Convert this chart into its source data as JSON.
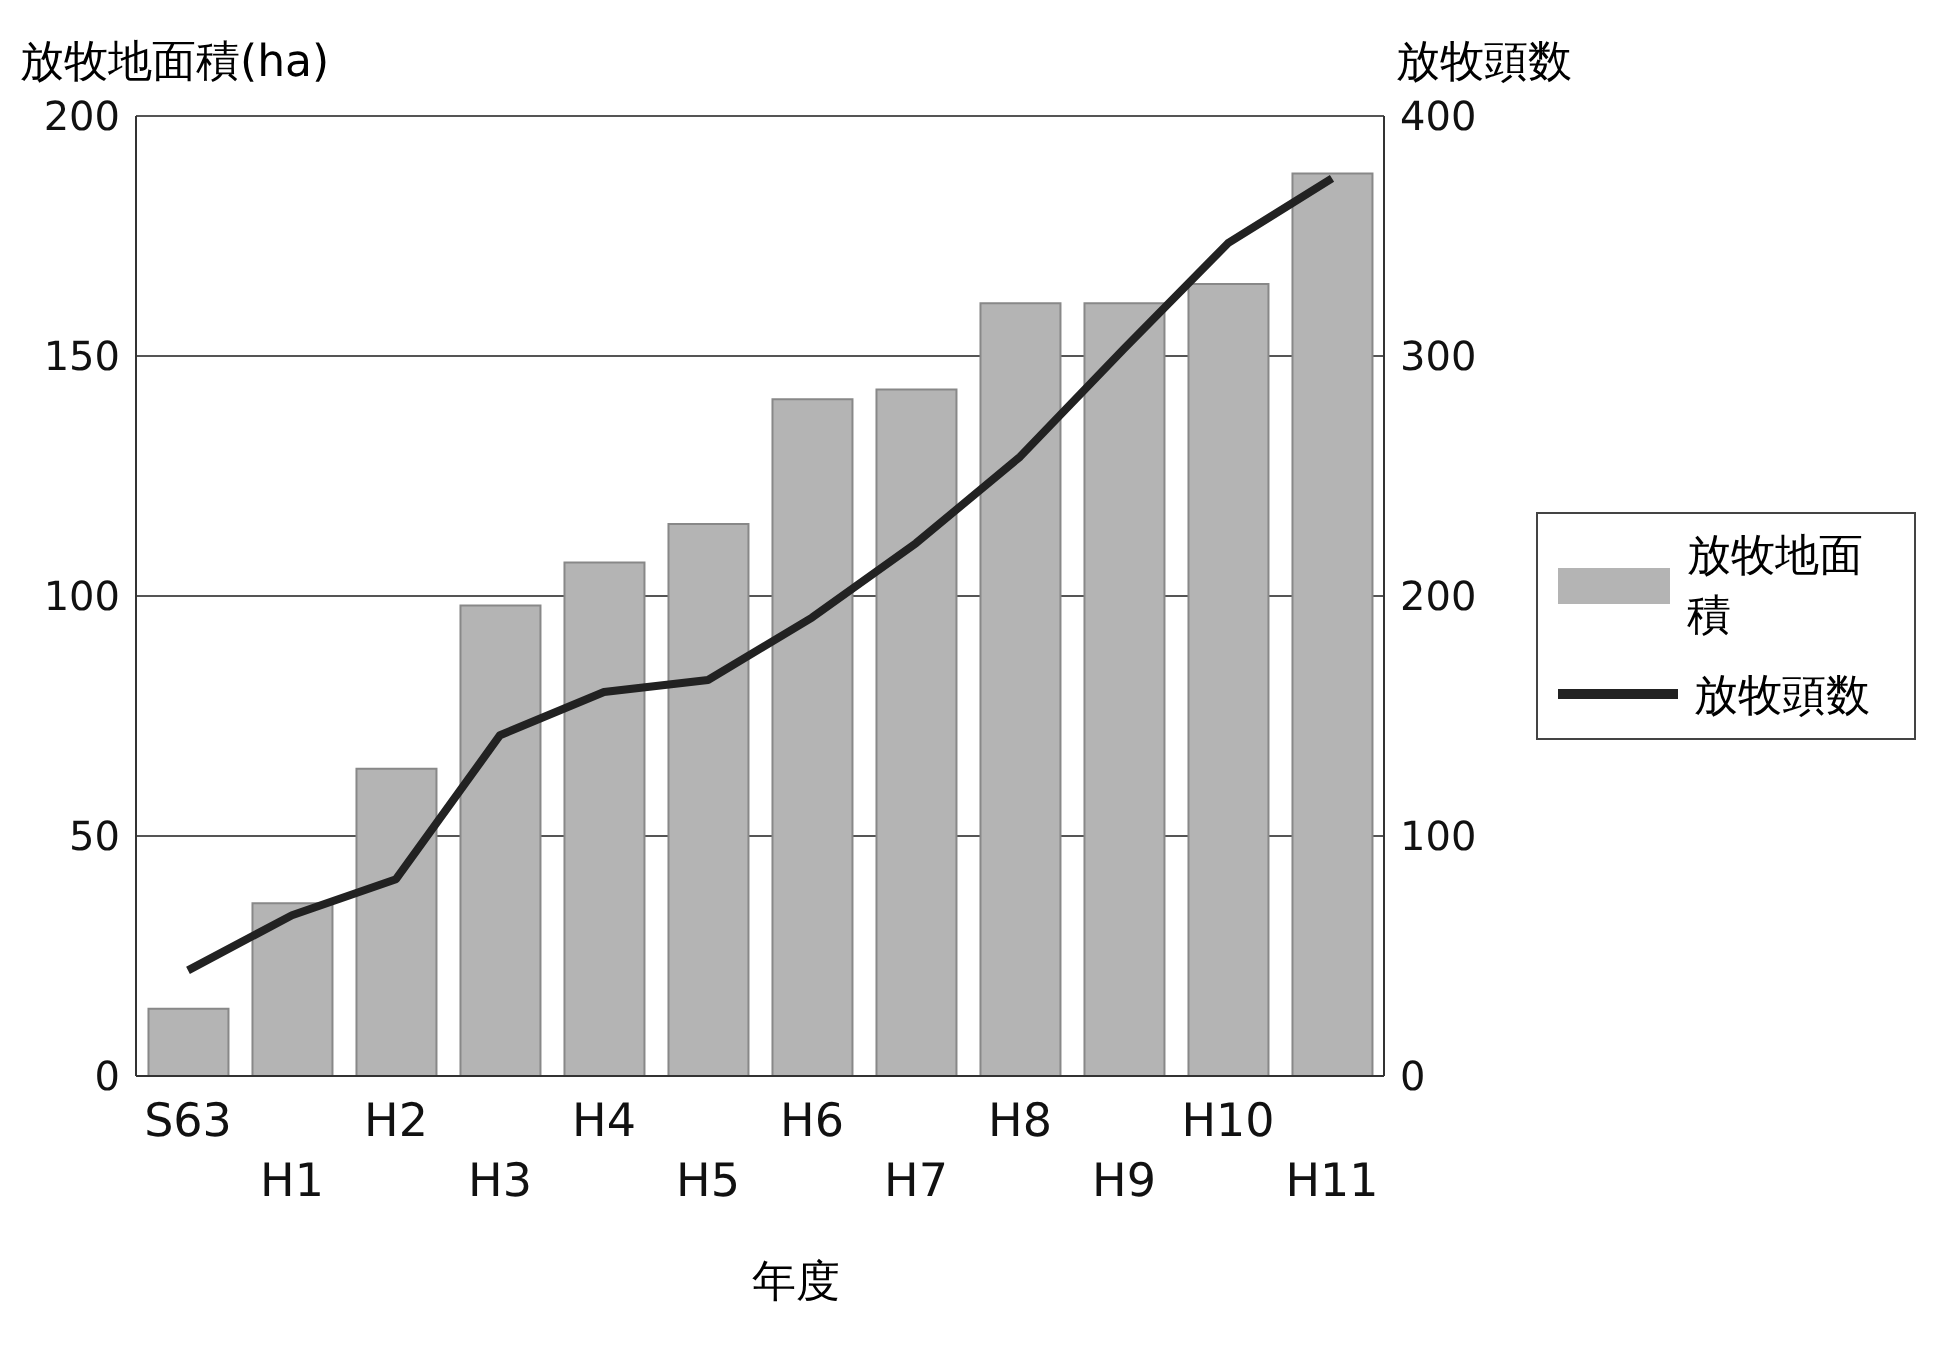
{
  "chart_data": {
    "type": "bar",
    "xlabel": "年度",
    "ylabel": "放牧地面積(ha)",
    "y2label": "放牧頭数",
    "categories": [
      "S63",
      "H1",
      "H2",
      "H3",
      "H4",
      "H5",
      "H6",
      "H7",
      "H8",
      "H9",
      "H10",
      "H11"
    ],
    "series": [
      {
        "name": "放牧地面積",
        "type": "bar",
        "color": "#b4b4b4",
        "values": [
          14,
          36,
          64,
          98,
          107,
          115,
          141,
          143,
          161,
          161,
          165,
          188
        ]
      },
      {
        "name": "放牧頭数",
        "type": "line",
        "axis": "y2",
        "color": "#222222",
        "values": [
          44,
          67,
          82,
          142,
          160,
          165,
          191,
          222,
          258,
          303,
          347,
          374
        ]
      }
    ],
    "ylim": [
      0,
      200
    ],
    "yticks": [
      0,
      50,
      100,
      150,
      200
    ],
    "y2lim": [
      0,
      400
    ],
    "y2ticks": [
      0,
      100,
      200,
      300,
      400
    ],
    "grid": "y",
    "legend": "right",
    "marker": "none",
    "line_style": "solid"
  }
}
